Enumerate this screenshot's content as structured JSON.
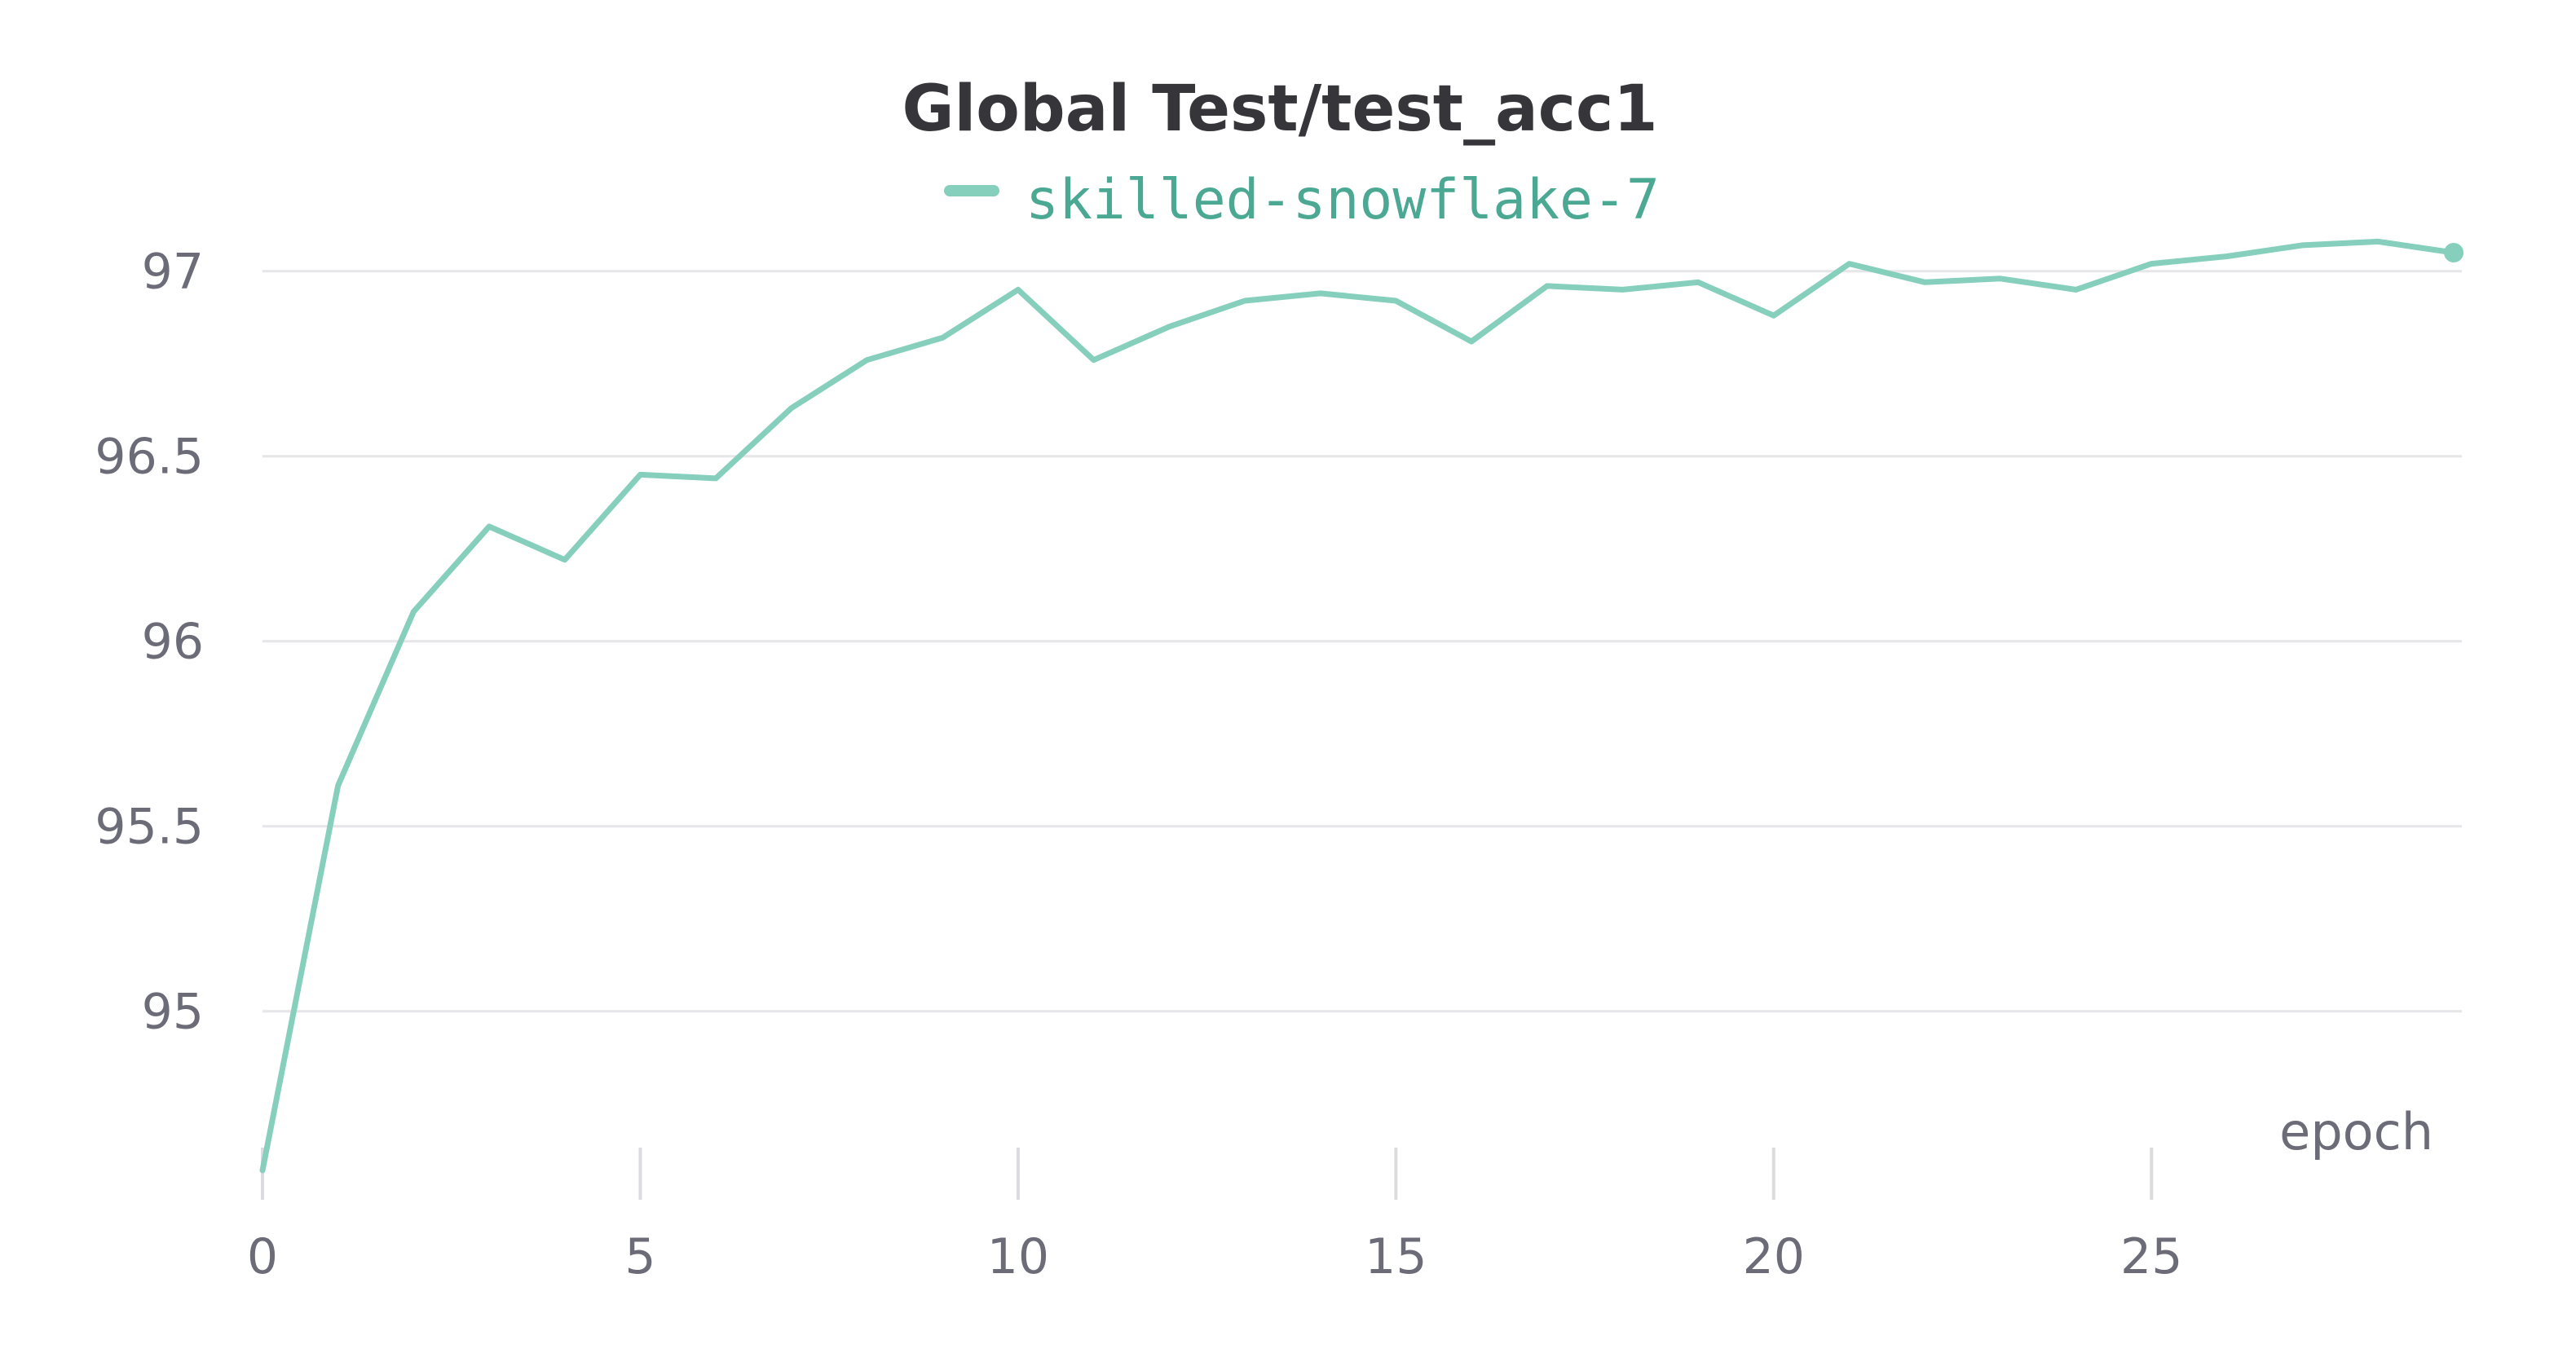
{
  "chart_data": {
    "type": "line",
    "title": "Global Test/test_acc1",
    "xlabel": "epoch",
    "ylabel": "",
    "xlim": [
      0,
      29
    ],
    "ylim": [
      94.55,
      97.05
    ],
    "x_ticks": [
      0,
      5,
      10,
      15,
      20,
      25
    ],
    "x_tick_labels": [
      "0",
      "5",
      "10",
      "15",
      "20",
      "25"
    ],
    "y_ticks": [
      95,
      95.5,
      96,
      96.5,
      97
    ],
    "y_tick_labels": [
      "95",
      "95.5",
      "96",
      "96.5",
      "97"
    ],
    "grid": true,
    "legend_position": "top-center",
    "series": [
      {
        "name": "skilled-snowflake-7",
        "color": "#86cfbd",
        "legend_text_color": "#4aa893",
        "x": [
          0,
          1,
          2,
          3,
          4,
          5,
          6,
          7,
          8,
          9,
          10,
          11,
          12,
          13,
          14,
          15,
          16,
          17,
          18,
          19,
          20,
          21,
          22,
          23,
          24,
          25,
          26,
          27,
          28,
          29
        ],
        "values": [
          94.57,
          95.61,
          96.08,
          96.31,
          96.22,
          96.45,
          96.44,
          96.63,
          96.76,
          96.82,
          96.95,
          96.76,
          96.85,
          96.92,
          96.94,
          96.92,
          96.81,
          96.96,
          96.95,
          96.97,
          96.88,
          97.02,
          96.97,
          96.98,
          96.95,
          97.02,
          97.04,
          97.07,
          97.08,
          97.05
        ]
      }
    ]
  }
}
